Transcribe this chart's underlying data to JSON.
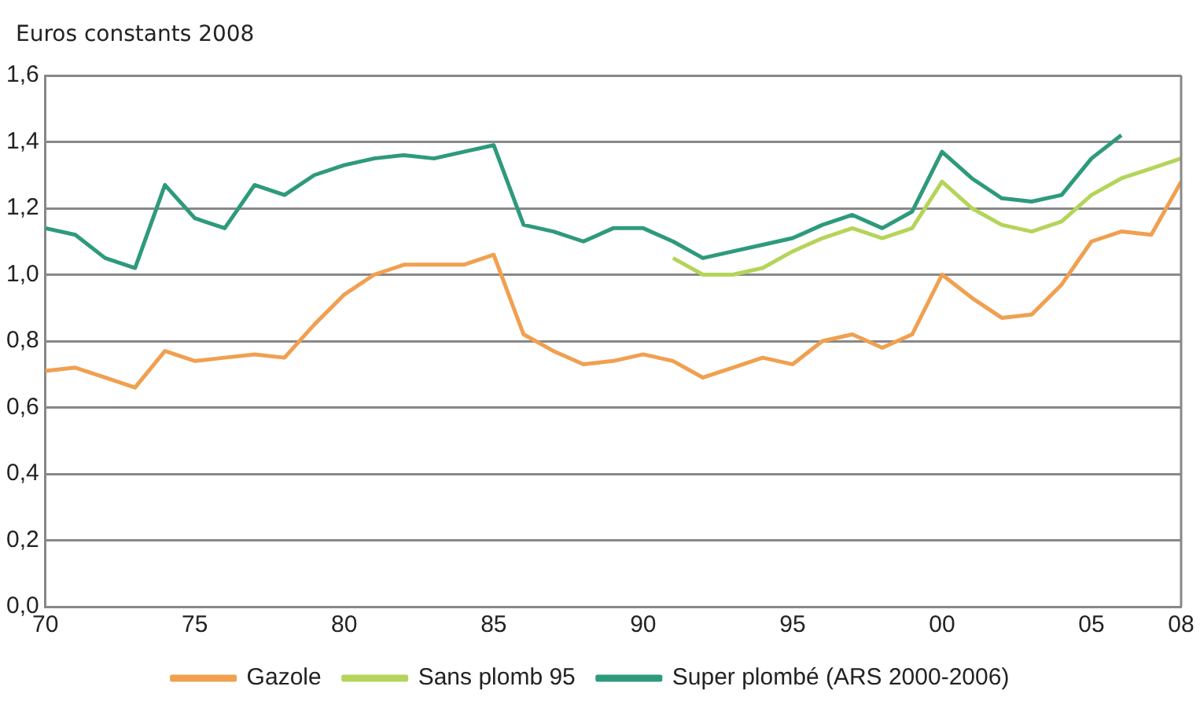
{
  "chart_data": {
    "type": "line",
    "ylabel": "Euros constants 2008",
    "xlim": [
      1970,
      2008
    ],
    "xticks": [
      {
        "value": 1970,
        "label": "70"
      },
      {
        "value": 1975,
        "label": "75"
      },
      {
        "value": 1980,
        "label": "80"
      },
      {
        "value": 1985,
        "label": "85"
      },
      {
        "value": 1990,
        "label": "90"
      },
      {
        "value": 1995,
        "label": "95"
      },
      {
        "value": 2000,
        "label": "00"
      },
      {
        "value": 2005,
        "label": "05"
      },
      {
        "value": 2008,
        "label": "08"
      }
    ],
    "ylim": [
      0,
      1.6
    ],
    "yticks": [
      {
        "value": 0,
        "label": "0,0"
      },
      {
        "value": 0.2,
        "label": "0,2"
      },
      {
        "value": 0.4,
        "label": "0,4"
      },
      {
        "value": 0.6,
        "label": "0,6"
      },
      {
        "value": 0.8,
        "label": "0,8"
      },
      {
        "value": 1,
        "label": "1,0"
      },
      {
        "value": 1.2,
        "label": "1,2"
      },
      {
        "value": 1.4,
        "label": "1,4"
      },
      {
        "value": 1.6,
        "label": "1,6"
      }
    ],
    "grid": "y",
    "legend": "bottom",
    "marker": "none",
    "line_style": "solid",
    "series": [
      {
        "name": "Gazole",
        "color": "#f0a050",
        "x": [
          1970,
          1971,
          1972,
          1973,
          1974,
          1975,
          1976,
          1977,
          1978,
          1979,
          1980,
          1981,
          1982,
          1983,
          1984,
          1985,
          1986,
          1987,
          1988,
          1989,
          1990,
          1991,
          1992,
          1993,
          1994,
          1995,
          1996,
          1997,
          1998,
          1999,
          2000,
          2001,
          2002,
          2003,
          2004,
          2005,
          2006,
          2007,
          2008
        ],
        "values": [
          0.71,
          0.72,
          0.69,
          0.66,
          0.77,
          0.74,
          0.75,
          0.76,
          0.75,
          0.85,
          0.94,
          1.0,
          1.03,
          1.03,
          1.03,
          1.06,
          0.82,
          0.77,
          0.73,
          0.74,
          0.76,
          0.74,
          0.69,
          0.72,
          0.75,
          0.73,
          0.8,
          0.82,
          0.78,
          0.82,
          1.0,
          0.93,
          0.87,
          0.88,
          0.97,
          1.1,
          1.13,
          1.12,
          1.28
        ]
      },
      {
        "name": "Sans plomb 95",
        "color": "#b5d45a",
        "x": [
          1991,
          1992,
          1993,
          1994,
          1995,
          1996,
          1997,
          1998,
          1999,
          2000,
          2001,
          2002,
          2003,
          2004,
          2005,
          2006,
          2007,
          2008
        ],
        "values": [
          1.05,
          1.0,
          1.0,
          1.02,
          1.07,
          1.11,
          1.14,
          1.11,
          1.14,
          1.28,
          1.2,
          1.15,
          1.13,
          1.16,
          1.24,
          1.29,
          1.32,
          1.35
        ]
      },
      {
        "name": "Super plombé (ARS 2000-2006)",
        "color": "#2e9a7c",
        "x": [
          1970,
          1971,
          1972,
          1973,
          1974,
          1975,
          1976,
          1977,
          1978,
          1979,
          1980,
          1981,
          1982,
          1983,
          1984,
          1985,
          1986,
          1987,
          1988,
          1989,
          1990,
          1991,
          1992,
          1993,
          1994,
          1995,
          1996,
          1997,
          1998,
          1999,
          2000,
          2001,
          2002,
          2003,
          2004,
          2005,
          2006
        ],
        "values": [
          1.14,
          1.12,
          1.05,
          1.02,
          1.27,
          1.17,
          1.14,
          1.27,
          1.24,
          1.3,
          1.33,
          1.35,
          1.36,
          1.35,
          1.37,
          1.39,
          1.15,
          1.13,
          1.1,
          1.14,
          1.14,
          1.1,
          1.05,
          1.07,
          1.09,
          1.11,
          1.15,
          1.18,
          1.14,
          1.19,
          1.37,
          1.29,
          1.23,
          1.22,
          1.24,
          1.35,
          1.42
        ]
      }
    ]
  }
}
